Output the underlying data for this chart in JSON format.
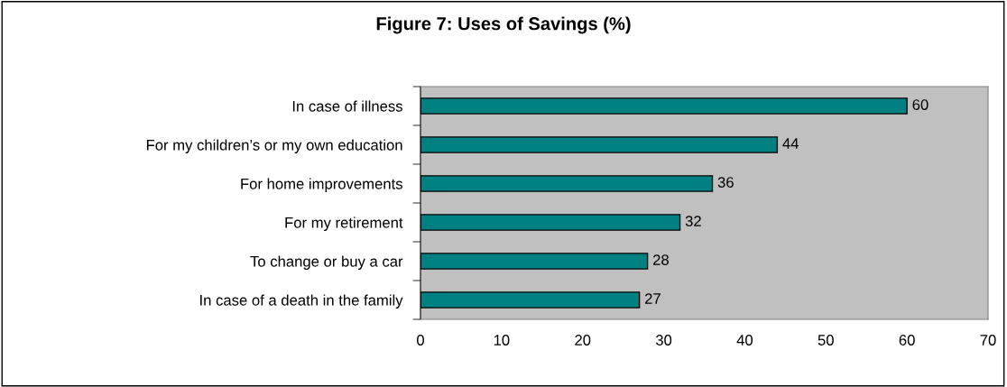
{
  "chart_data": {
    "type": "bar",
    "orientation": "horizontal",
    "title": "Figure 7: Uses of Savings (%)",
    "categories": [
      "In case of illness",
      "For my children’s or my own education",
      "For home improvements",
      "For my retirement",
      "To change or buy a car",
      "In case of a death in the family"
    ],
    "values": [
      60,
      44,
      36,
      32,
      28,
      27
    ],
    "color": "#008080",
    "xlim": [
      0,
      70
    ],
    "xticks": [
      0,
      10,
      20,
      30,
      40,
      50,
      60,
      70
    ],
    "grid": false,
    "data_labels": true
  }
}
